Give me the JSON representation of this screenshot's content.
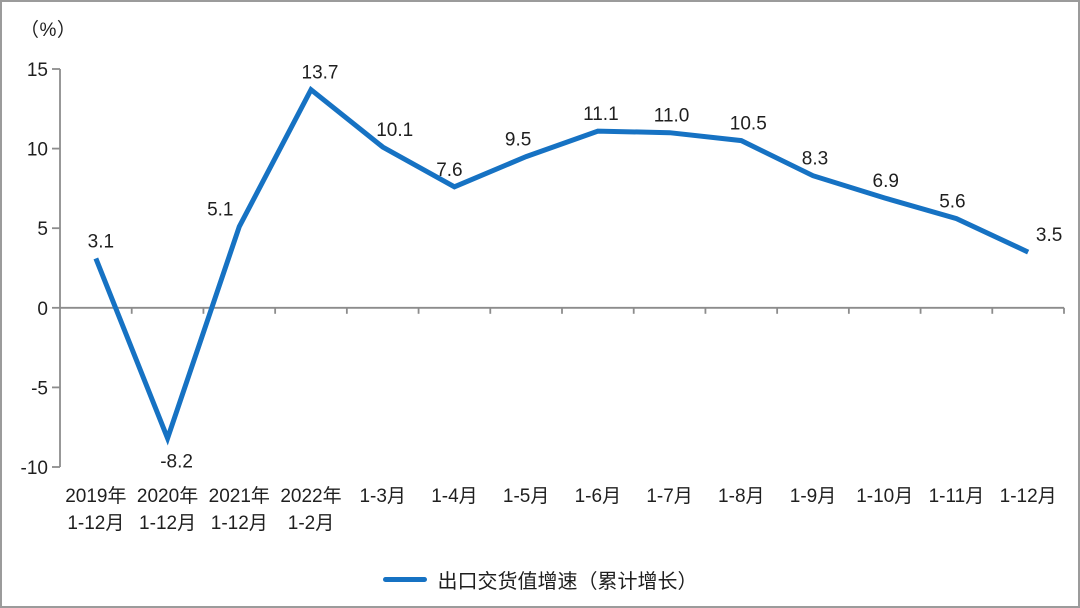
{
  "chart_data": {
    "type": "line",
    "title": "",
    "unit_label": "（%）",
    "categories": [
      "2019年\n1-12月",
      "2020年\n1-12月",
      "2021年\n1-12月",
      "2022年\n1-2月",
      "1-3月",
      "1-4月",
      "1-5月",
      "1-6月",
      "1-7月",
      "1-8月",
      "1-9月",
      "1-10月",
      "1-11月",
      "1-12月",
      ""
    ],
    "series": [
      {
        "name": "出口交货值增速（累计增长）",
        "color": "#1672c3",
        "values": [
          3.1,
          -8.2,
          5.1,
          13.7,
          10.1,
          7.6,
          9.5,
          11.1,
          11.0,
          10.5,
          8.3,
          6.9,
          5.6,
          3.5
        ],
        "data_labels": [
          "3.1",
          "-8.2",
          "5.1",
          "13.7",
          "10.1",
          "7.6",
          "9.5",
          "11.1",
          "11.0",
          "10.5",
          "8.3",
          "6.9",
          "5.6",
          "3.5"
        ],
        "label_positions": [
          "above",
          "below",
          "above",
          "above",
          "above",
          "above",
          "above",
          "above",
          "above",
          "above",
          "above",
          "above",
          "above",
          "above"
        ],
        "label_dx": [
          5,
          9,
          -19,
          9,
          12,
          -5,
          -8,
          3,
          2,
          7,
          2,
          1,
          -4,
          21
        ]
      }
    ],
    "y_axis": {
      "min": -10,
      "max": 15,
      "ticks": [
        15,
        10,
        5,
        0,
        -5,
        -10
      ]
    },
    "x_axis": {
      "baseline_value": 0
    },
    "grid": "none",
    "legend_position": "bottom",
    "colors": {
      "axis": "#8c8c8c",
      "text": "#1f1f1f",
      "line": "#1672c3"
    }
  }
}
